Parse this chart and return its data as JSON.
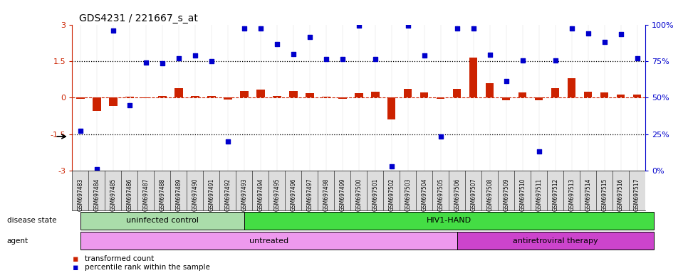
{
  "title": "GDS4231 / 221667_s_at",
  "samples": [
    "GSM697483",
    "GSM697484",
    "GSM697485",
    "GSM697486",
    "GSM697487",
    "GSM697488",
    "GSM697489",
    "GSM697490",
    "GSM697491",
    "GSM697492",
    "GSM697493",
    "GSM697494",
    "GSM697495",
    "GSM697496",
    "GSM697497",
    "GSM697498",
    "GSM697499",
    "GSM697500",
    "GSM697501",
    "GSM697502",
    "GSM697503",
    "GSM697504",
    "GSM697505",
    "GSM697506",
    "GSM697507",
    "GSM697508",
    "GSM697509",
    "GSM697510",
    "GSM697511",
    "GSM697512",
    "GSM697513",
    "GSM697514",
    "GSM697515",
    "GSM697516",
    "GSM697517"
  ],
  "transformed_count": [
    -0.05,
    -0.55,
    -0.35,
    0.05,
    -0.03,
    0.08,
    0.38,
    0.06,
    0.08,
    -0.07,
    0.28,
    0.32,
    0.06,
    0.28,
    0.18,
    0.05,
    -0.05,
    0.18,
    0.25,
    -0.9,
    0.35,
    0.22,
    -0.05,
    0.35,
    1.65,
    0.6,
    -0.1,
    0.22,
    -0.12,
    0.38,
    0.8,
    0.25,
    0.22,
    0.12,
    0.12
  ],
  "percentile_rank": [
    -1.35,
    -2.95,
    2.75,
    -0.3,
    1.45,
    1.4,
    1.62,
    1.72,
    1.5,
    -1.8,
    2.85,
    2.85,
    2.2,
    1.78,
    2.5,
    1.58,
    1.58,
    2.95,
    1.58,
    -2.82,
    2.95,
    1.72,
    -1.6,
    2.85,
    2.85,
    1.75,
    0.68,
    1.52,
    -2.22,
    1.52,
    2.85,
    2.65,
    2.28,
    2.62,
    1.62
  ],
  "bar_color": "#cc2200",
  "dot_color": "#0000cc",
  "hline_color": "#cc2200",
  "dotted_line_color": "black",
  "ylim": [
    -3,
    3
  ],
  "yticks_left": [
    -3,
    -1.5,
    0,
    1.5,
    3
  ],
  "yticks_right_labels": [
    "0%",
    "25%",
    "50%",
    "75%",
    "100%"
  ],
  "uninfected_count": 10,
  "untreated_count": 23,
  "disease_state_label1": "uninfected control",
  "disease_state_label2": "HIV1-HAND",
  "agent_label1": "untreated",
  "agent_label2": "antiretroviral therapy",
  "color_uninfected": "#aaddaa",
  "color_hiv": "#44dd44",
  "color_untreated": "#ee99ee",
  "color_antiviral": "#cc44cc",
  "legend_bar_label": "transformed count",
  "legend_dot_label": "percentile rank within the sample",
  "bg_color": "#ffffff",
  "ticklabel_bg": "#dddddd"
}
